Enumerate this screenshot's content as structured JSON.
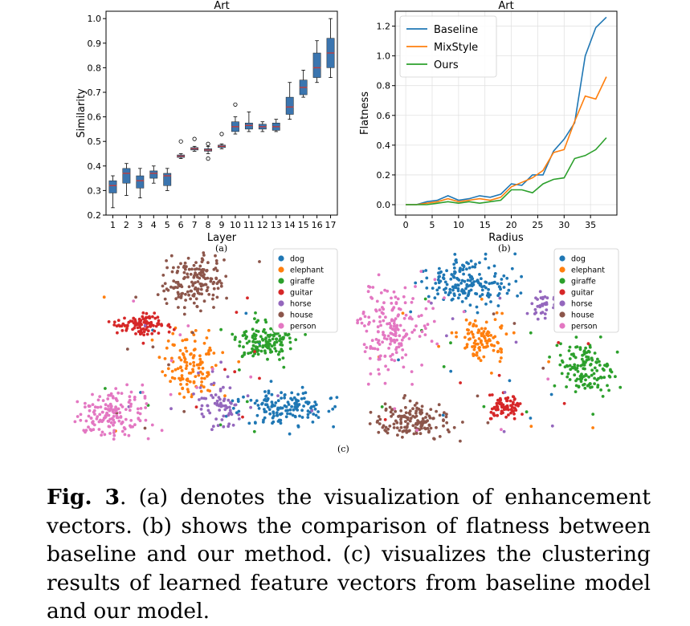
{
  "figure": {
    "sublabels": {
      "a": "(a)",
      "b": "(b)",
      "c": "(c)"
    },
    "caption": {
      "label": "Fig. 3",
      "text": ". (a) denotes the visualization of enhancement vectors. (b) shows the comparison of flatness between baseline and our method. (c) visualizes the clustering results of learned feature vectors from baseline model and our model."
    }
  },
  "chart_data": [
    {
      "type": "box",
      "title": "Art",
      "xlabel": "Layer",
      "ylabel": "Similarity",
      "ylim": [
        0.2,
        1.03
      ],
      "yticks": [
        0.2,
        0.3,
        0.4,
        0.5,
        0.6,
        0.7,
        0.8,
        0.9,
        1.0
      ],
      "ytick_labels": [
        "0.2",
        "0.3",
        "0.4",
        "0.5",
        "0.6",
        "0.7",
        "0.8",
        "0.9",
        "1.0"
      ],
      "categories": [
        "1",
        "2",
        "3",
        "4",
        "5",
        "6",
        "7",
        "8",
        "9",
        "10",
        "11",
        "12",
        "13",
        "14",
        "15",
        "16",
        "17"
      ],
      "box_color": "#3b75af",
      "median_color": "#c03d3e",
      "boxes": [
        {
          "min": 0.23,
          "q1": 0.29,
          "median": 0.32,
          "q3": 0.34,
          "max": 0.36,
          "outliers": []
        },
        {
          "min": 0.28,
          "q1": 0.33,
          "median": 0.37,
          "q3": 0.39,
          "max": 0.41,
          "outliers": []
        },
        {
          "min": 0.27,
          "q1": 0.31,
          "median": 0.34,
          "q3": 0.36,
          "max": 0.39,
          "outliers": []
        },
        {
          "min": 0.33,
          "q1": 0.35,
          "median": 0.37,
          "q3": 0.38,
          "max": 0.4,
          "outliers": []
        },
        {
          "min": 0.3,
          "q1": 0.32,
          "median": 0.36,
          "q3": 0.37,
          "max": 0.39,
          "outliers": []
        },
        {
          "min": 0.43,
          "q1": 0.435,
          "median": 0.44,
          "q3": 0.445,
          "max": 0.45,
          "outliers": [
            0.5
          ]
        },
        {
          "min": 0.46,
          "q1": 0.465,
          "median": 0.47,
          "q3": 0.475,
          "max": 0.48,
          "outliers": [
            0.51
          ]
        },
        {
          "min": 0.45,
          "q1": 0.46,
          "median": 0.465,
          "q3": 0.47,
          "max": 0.48,
          "outliers": [
            0.43,
            0.49
          ]
        },
        {
          "min": 0.47,
          "q1": 0.475,
          "median": 0.48,
          "q3": 0.485,
          "max": 0.49,
          "outliers": [
            0.53
          ]
        },
        {
          "min": 0.53,
          "q1": 0.54,
          "median": 0.56,
          "q3": 0.58,
          "max": 0.6,
          "outliers": [
            0.65
          ]
        },
        {
          "min": 0.54,
          "q1": 0.55,
          "median": 0.565,
          "q3": 0.575,
          "max": 0.62,
          "outliers": []
        },
        {
          "min": 0.54,
          "q1": 0.55,
          "median": 0.56,
          "q3": 0.57,
          "max": 0.58,
          "outliers": []
        },
        {
          "min": 0.54,
          "q1": 0.545,
          "median": 0.56,
          "q3": 0.575,
          "max": 0.59,
          "outliers": []
        },
        {
          "min": 0.59,
          "q1": 0.61,
          "median": 0.64,
          "q3": 0.68,
          "max": 0.74,
          "outliers": []
        },
        {
          "min": 0.68,
          "q1": 0.69,
          "median": 0.72,
          "q3": 0.75,
          "max": 0.79,
          "outliers": []
        },
        {
          "min": 0.74,
          "q1": 0.76,
          "median": 0.8,
          "q3": 0.86,
          "max": 0.91,
          "outliers": []
        },
        {
          "min": 0.76,
          "q1": 0.8,
          "median": 0.86,
          "q3": 0.92,
          "max": 1.0,
          "outliers": []
        }
      ]
    },
    {
      "type": "line",
      "title": "Art",
      "xlabel": "Radius",
      "ylabel": "Flatness",
      "xlim": [
        -2,
        40
      ],
      "ylim": [
        -0.07,
        1.3
      ],
      "xticks": [
        0,
        5,
        10,
        15,
        20,
        25,
        30,
        35
      ],
      "yticks": [
        0.0,
        0.2,
        0.4,
        0.6,
        0.8,
        1.0,
        1.2
      ],
      "xtick_labels": [
        "0",
        "5",
        "10",
        "15",
        "20",
        "25",
        "30",
        "35"
      ],
      "ytick_labels": [
        "0.0",
        "0.2",
        "0.4",
        "0.6",
        "0.8",
        "1.0",
        "1.2"
      ],
      "grid": true,
      "legend": "top-left",
      "x": [
        0,
        2,
        4,
        6,
        8,
        10,
        12,
        14,
        16,
        18,
        20,
        22,
        24,
        26,
        28,
        30,
        32,
        34,
        36,
        38
      ],
      "series": [
        {
          "name": "Baseline",
          "color": "#1f77b4",
          "values": [
            0.0,
            0.0,
            0.02,
            0.03,
            0.06,
            0.03,
            0.04,
            0.06,
            0.05,
            0.07,
            0.14,
            0.13,
            0.2,
            0.2,
            0.36,
            0.44,
            0.55,
            1.0,
            1.19,
            1.26
          ]
        },
        {
          "name": "MixStyle",
          "color": "#ff7f0e",
          "values": [
            0.0,
            0.0,
            0.01,
            0.02,
            0.04,
            0.02,
            0.03,
            0.04,
            0.03,
            0.05,
            0.12,
            0.15,
            0.18,
            0.23,
            0.35,
            0.37,
            0.56,
            0.73,
            0.71,
            0.86
          ]
        },
        {
          "name": "Ours",
          "color": "#2ca02c",
          "values": [
            0.0,
            0.0,
            0.0,
            0.01,
            0.02,
            0.01,
            0.02,
            0.01,
            0.02,
            0.03,
            0.1,
            0.1,
            0.08,
            0.14,
            0.17,
            0.18,
            0.31,
            0.33,
            0.37,
            0.45
          ]
        }
      ]
    },
    {
      "type": "scatter",
      "legend": "top-right",
      "series": [
        {
          "name": "dog",
          "color": "#1f77b4"
        },
        {
          "name": "elephant",
          "color": "#ff7f0e"
        },
        {
          "name": "giraffe",
          "color": "#2ca02c"
        },
        {
          "name": "guitar",
          "color": "#d62728"
        },
        {
          "name": "horse",
          "color": "#9467bd"
        },
        {
          "name": "house",
          "color": "#8c564b"
        },
        {
          "name": "person",
          "color": "#e377c2"
        }
      ]
    },
    {
      "type": "scatter",
      "legend": "top-right",
      "series": [
        {
          "name": "dog",
          "color": "#1f77b4"
        },
        {
          "name": "elephant",
          "color": "#ff7f0e"
        },
        {
          "name": "giraffe",
          "color": "#2ca02c"
        },
        {
          "name": "guitar",
          "color": "#d62728"
        },
        {
          "name": "horse",
          "color": "#9467bd"
        },
        {
          "name": "house",
          "color": "#8c564b"
        },
        {
          "name": "person",
          "color": "#e377c2"
        }
      ]
    }
  ]
}
